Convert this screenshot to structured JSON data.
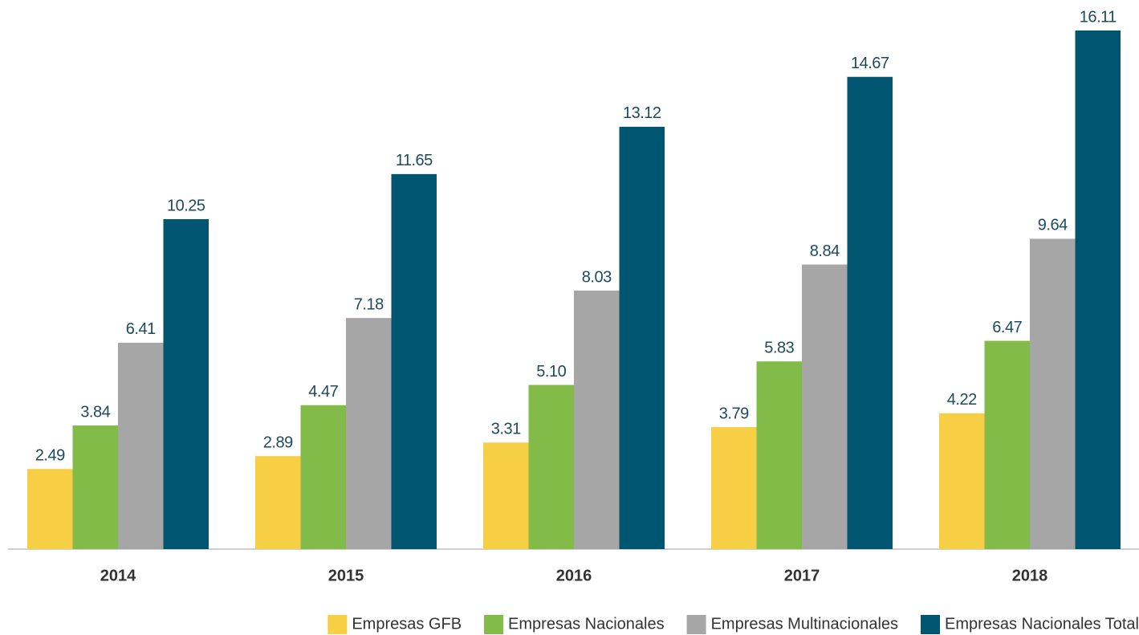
{
  "chart_data": {
    "type": "bar",
    "categories": [
      "2014",
      "2015",
      "2016",
      "2017",
      "2018"
    ],
    "series": [
      {
        "name": "Empresas GFB",
        "color": "#f7cf45",
        "values": [
          2.49,
          2.89,
          3.31,
          3.79,
          4.22
        ]
      },
      {
        "name": "Empresas Nacionales",
        "color": "#82bb47",
        "values": [
          3.84,
          4.47,
          5.1,
          5.83,
          6.47
        ],
        "value_labels": [
          "3.84",
          "4.47",
          "5.10",
          "5.83",
          "6.47"
        ]
      },
      {
        "name": "Empresas Multinacionales",
        "color": "#a6a6a6",
        "values": [
          6.41,
          7.18,
          8.03,
          8.84,
          9.64
        ]
      },
      {
        "name": "Empresas Nacionales Total",
        "color": "#005571",
        "values": [
          10.25,
          11.65,
          13.12,
          14.67,
          16.11
        ]
      }
    ],
    "legend": "bottom-right"
  }
}
